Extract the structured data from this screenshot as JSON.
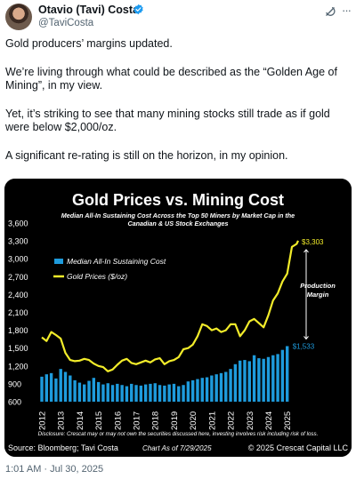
{
  "post": {
    "author_name": "Otavio (Tavi) Costa",
    "author_handle": "@TaviCosta",
    "paragraphs": [
      "Gold producers’ margins updated.",
      "We’re living through what could be described as the “Golden Age of Mining”, in my view.",
      "Yet, it’s striking to see that many mining stocks still trade as if gold were below $2,000/oz.",
      "A significant re-rating is still on the horizon, in my opinion."
    ],
    "timestamp": "1:01 AM · Jul 30, 2025",
    "icons": [
      "verified-badge-icon",
      "grok-icon",
      "more-options-icon"
    ]
  },
  "chart_data": {
    "type": "bar",
    "title": "Gold Prices vs. Mining Cost",
    "subtitle": "Median All-In Sustaining Cost Across the Top 50 Miners by Market Cap in the Canadian & US Stock Exchanges",
    "x_ticks": [
      "2012",
      "2013",
      "2014",
      "2015",
      "2016",
      "2017",
      "2018",
      "2019",
      "2020",
      "2021",
      "2022",
      "2023",
      "2024",
      "2025"
    ],
    "y_ticks": [
      "600",
      "900",
      "1,200",
      "1,500",
      "1,800",
      "2,100",
      "2,400",
      "2,700",
      "3,000",
      "3,300",
      "3,600"
    ],
    "ylim": [
      600,
      3600
    ],
    "series": [
      {
        "name": "Median All-In Sustaining Cost",
        "type": "bar",
        "color": "#1e9bdc",
        "x": [
          2012.0,
          2012.25,
          2012.5,
          2012.75,
          2013.0,
          2013.25,
          2013.5,
          2013.75,
          2014.0,
          2014.25,
          2014.5,
          2014.75,
          2015.0,
          2015.25,
          2015.5,
          2015.75,
          2016.0,
          2016.25,
          2016.5,
          2016.75,
          2017.0,
          2017.25,
          2017.5,
          2017.75,
          2018.0,
          2018.25,
          2018.5,
          2018.75,
          2019.0,
          2019.25,
          2019.5,
          2019.75,
          2020.0,
          2020.25,
          2020.5,
          2020.75,
          2021.0,
          2021.25,
          2021.5,
          2021.75,
          2022.0,
          2022.25,
          2022.5,
          2022.75,
          2023.0,
          2023.25,
          2023.5,
          2023.75,
          2024.0,
          2024.25,
          2024.5,
          2024.75,
          2025.0
        ],
        "values": [
          1020,
          1060,
          1080,
          990,
          1150,
          1100,
          1040,
          960,
          920,
          890,
          950,
          1000,
          930,
          890,
          910,
          880,
          900,
          880,
          860,
          900,
          880,
          870,
          890,
          900,
          910,
          880,
          870,
          890,
          900,
          860,
          880,
          940,
          960,
          980,
          1000,
          1010,
          1040,
          1060,
          1080,
          1100,
          1150,
          1230,
          1290,
          1300,
          1280,
          1380,
          1330,
          1320,
          1350,
          1380,
          1400,
          1470,
          1533
        ]
      },
      {
        "name": "Gold Prices ($/oz)",
        "type": "line",
        "color": "#f2ec2a",
        "x": [
          2012.0,
          2012.25,
          2012.5,
          2012.75,
          2013.0,
          2013.25,
          2013.5,
          2013.75,
          2014.0,
          2014.25,
          2014.5,
          2014.75,
          2015.0,
          2015.25,
          2015.5,
          2015.75,
          2016.0,
          2016.25,
          2016.5,
          2016.75,
          2017.0,
          2017.25,
          2017.5,
          2017.75,
          2018.0,
          2018.25,
          2018.5,
          2018.75,
          2019.0,
          2019.25,
          2019.5,
          2019.75,
          2020.0,
          2020.25,
          2020.5,
          2020.75,
          2021.0,
          2021.25,
          2021.5,
          2021.75,
          2022.0,
          2022.25,
          2022.5,
          2022.75,
          2023.0,
          2023.25,
          2023.5,
          2023.75,
          2024.0,
          2024.25,
          2024.5,
          2024.75,
          2025.0,
          2025.25,
          2025.5,
          2025.58
        ],
        "values": [
          1680,
          1620,
          1770,
          1720,
          1660,
          1420,
          1300,
          1280,
          1290,
          1320,
          1300,
          1240,
          1200,
          1180,
          1110,
          1140,
          1220,
          1290,
          1320,
          1250,
          1230,
          1260,
          1290,
          1260,
          1310,
          1330,
          1230,
          1280,
          1300,
          1350,
          1480,
          1500,
          1560,
          1700,
          1900,
          1870,
          1800,
          1830,
          1770,
          1800,
          1900,
          1900,
          1700,
          1800,
          1950,
          1990,
          1920,
          1850,
          2050,
          2300,
          2420,
          2620,
          2750,
          3200,
          3250,
          3303
        ]
      }
    ],
    "labels": {
      "gold_end": "$3,303",
      "cost_end": "$1,533",
      "margin": "Production Margin"
    },
    "legend": {
      "placement": "upper-left"
    },
    "source": "Source: Bloomberg; Tavi Costa",
    "chart_as_of": "Chart As of 7/29/2025",
    "copyright": "© 2025 Crescat Capital LLC",
    "disclosure": "Disclosure: Crescat may or may not own the securities discussed here, investing involves risk including risk of loss."
  }
}
